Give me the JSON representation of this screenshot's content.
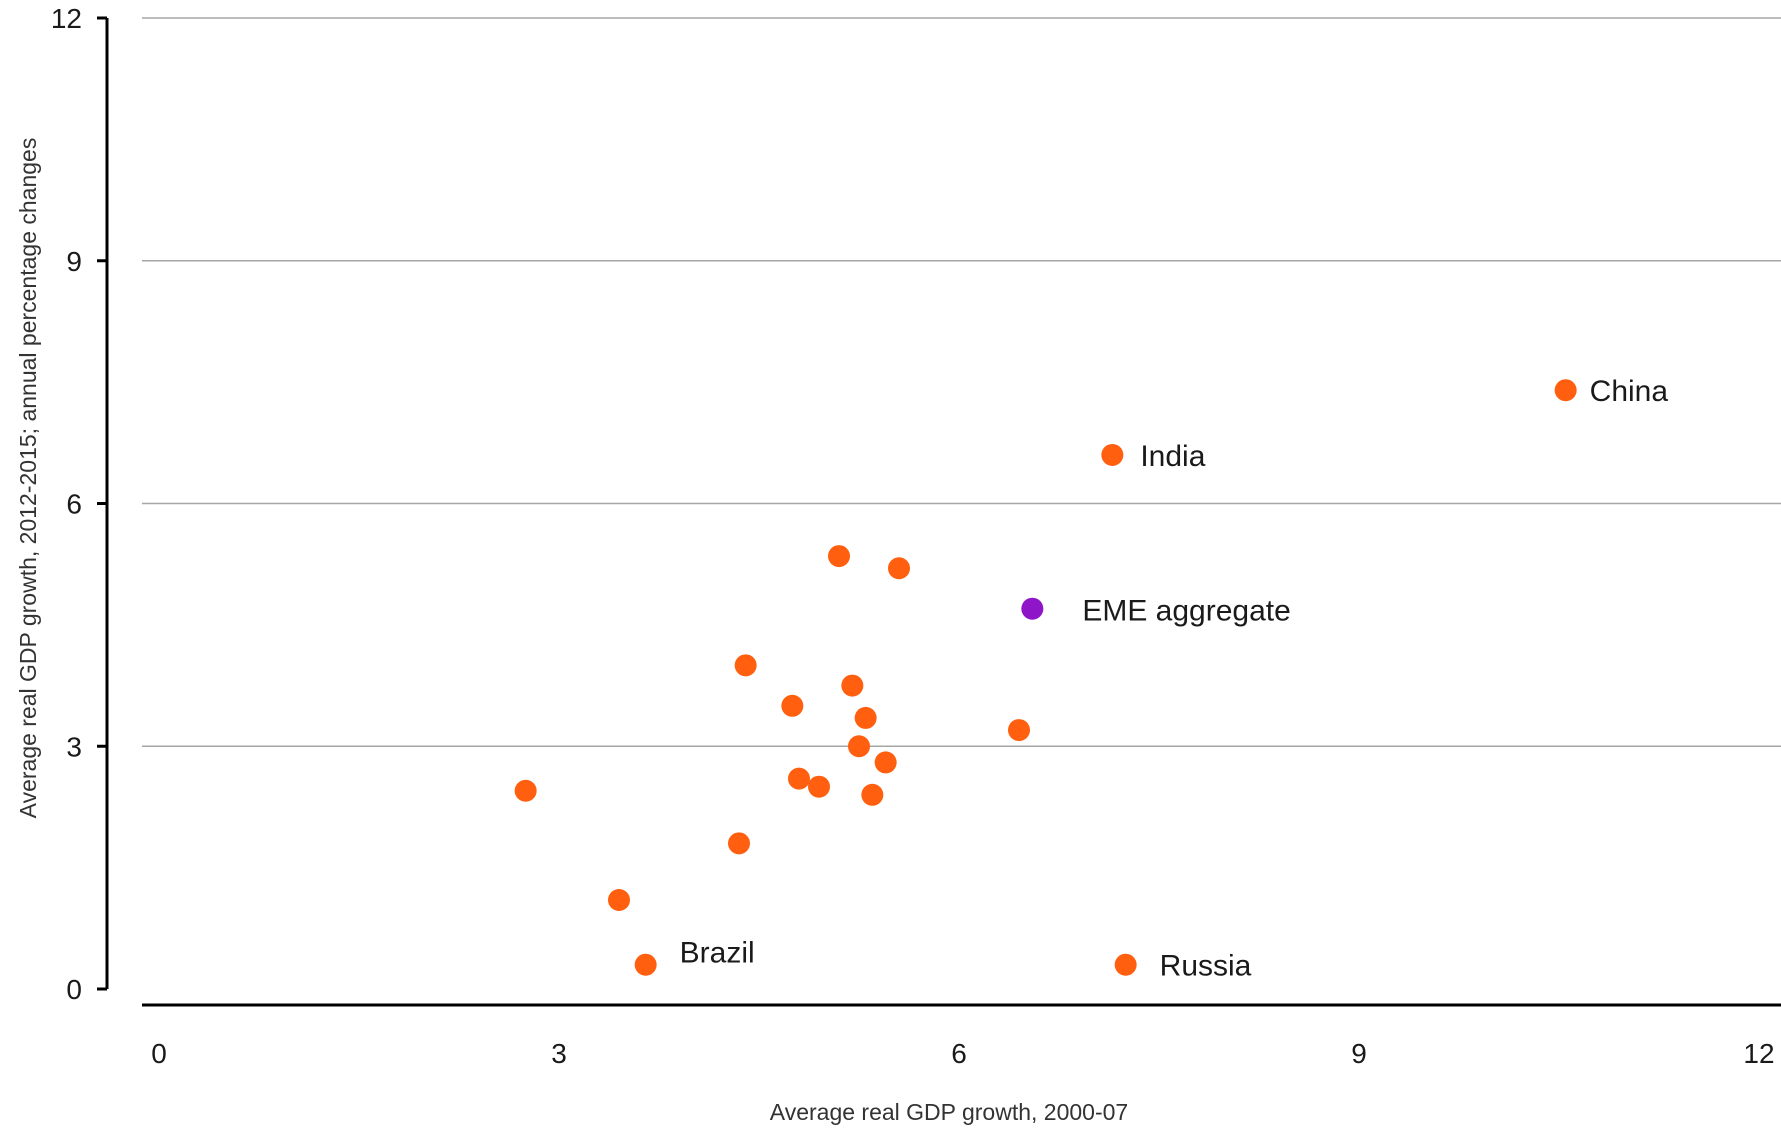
{
  "chart_data": {
    "type": "scatter",
    "xlabel": "Average real GDP growth, 2000-07",
    "ylabel": "Average real GDP growth, 2012-2015; annual percentage changes",
    "xlim": [
      0,
      12
    ],
    "ylim": [
      0,
      12
    ],
    "x_ticks": [
      "0",
      "3",
      "6",
      "9",
      "12"
    ],
    "y_ticks": [
      "0",
      "3",
      "6",
      "9",
      "12"
    ],
    "grid": "horizontal",
    "colors": {
      "country": "#ff5f0f",
      "aggregate": "#8f16c8",
      "grid": "#a6a6a6",
      "axis": "#000000"
    },
    "series": [
      {
        "group": "country",
        "points": [
          {
            "x": 10.55,
            "y": 7.4,
            "label": "China"
          },
          {
            "x": 7.15,
            "y": 6.6,
            "label": "India"
          },
          {
            "x": 3.65,
            "y": 0.3,
            "label": "Brazil"
          },
          {
            "x": 7.25,
            "y": 0.3,
            "label": "Russia"
          },
          {
            "x": 5.1,
            "y": 5.35
          },
          {
            "x": 5.55,
            "y": 5.2
          },
          {
            "x": 4.4,
            "y": 4.0
          },
          {
            "x": 4.75,
            "y": 3.5
          },
          {
            "x": 5.2,
            "y": 3.75
          },
          {
            "x": 5.3,
            "y": 3.35
          },
          {
            "x": 6.45,
            "y": 3.2
          },
          {
            "x": 5.25,
            "y": 3.0
          },
          {
            "x": 5.45,
            "y": 2.8
          },
          {
            "x": 4.8,
            "y": 2.6
          },
          {
            "x": 4.95,
            "y": 2.5
          },
          {
            "x": 5.35,
            "y": 2.4
          },
          {
            "x": 2.75,
            "y": 2.45
          },
          {
            "x": 4.35,
            "y": 1.8
          },
          {
            "x": 3.45,
            "y": 1.1
          }
        ]
      },
      {
        "group": "aggregate",
        "points": [
          {
            "x": 6.55,
            "y": 4.7,
            "label": "EME aggregate"
          }
        ]
      }
    ]
  }
}
